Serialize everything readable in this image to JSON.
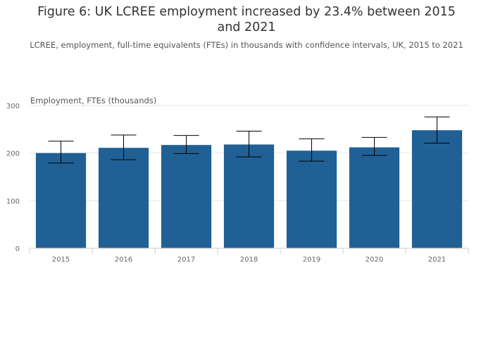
{
  "chart_data": {
    "type": "bar",
    "title": "Figure 6: UK LCREE employment increased by 23.4% between 2015 and 2021",
    "subtitle": "LCREE, employment, full-time equivalents (FTEs) in thousands with confidence intervals, UK, 2015 to 2021",
    "ylabel": "Employment, FTEs (thousands)",
    "xlabel": "",
    "categories": [
      "2015",
      "2016",
      "2017",
      "2018",
      "2019",
      "2020",
      "2021"
    ],
    "values": [
      200,
      211,
      217,
      218,
      205,
      212,
      248
    ],
    "error_low": [
      179,
      186,
      199,
      192,
      183,
      195,
      221
    ],
    "error_high": [
      225,
      238,
      237,
      246,
      230,
      233,
      276
    ],
    "ylim": [
      0,
      300
    ],
    "yticks": [
      0,
      100,
      200,
      300
    ],
    "grid": true,
    "legend": false,
    "colors": {
      "bar": "#206095",
      "error_bar": "#000000",
      "grid": "#e5e5e5",
      "axis": "#cccccc",
      "text": "#666666"
    }
  }
}
